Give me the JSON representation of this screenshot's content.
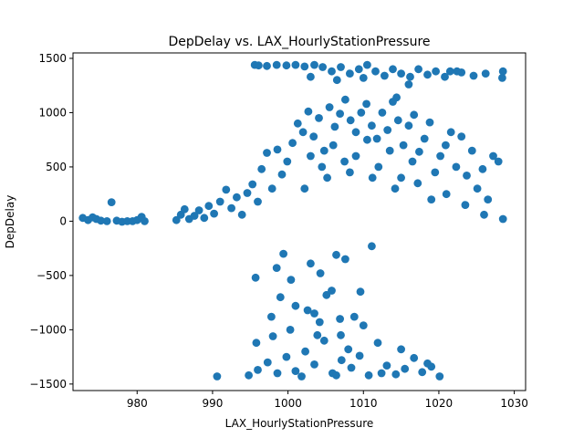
{
  "chart_data": {
    "type": "scatter",
    "title": "DepDelay vs. LAX_HourlyStationPressure",
    "xlabel": "LAX_HourlyStationPressure",
    "ylabel": "DepDelay",
    "xlim": [
      971.5,
      1031.5
    ],
    "ylim": [
      -1560,
      1550
    ],
    "xticks": [
      980,
      990,
      1000,
      1010,
      1020,
      1030
    ],
    "yticks": [
      -1500,
      -1000,
      -500,
      0,
      500,
      1000,
      1500
    ],
    "grid": false,
    "marker_color": "#1f77b4",
    "series": [
      {
        "points": [
          [
            972.8,
            30
          ],
          [
            973.5,
            10
          ],
          [
            974.1,
            35
          ],
          [
            974.6,
            20
          ],
          [
            975.2,
            5
          ],
          [
            976.0,
            0
          ],
          [
            976.6,
            175
          ],
          [
            977.3,
            5
          ],
          [
            978.0,
            -5
          ],
          [
            978.7,
            0
          ],
          [
            979.4,
            0
          ],
          [
            980.0,
            10
          ],
          [
            980.6,
            40
          ],
          [
            981.0,
            0
          ],
          [
            985.2,
            10
          ],
          [
            985.8,
            60
          ],
          [
            986.3,
            110
          ],
          [
            986.9,
            20
          ],
          [
            987.6,
            50
          ],
          [
            988.2,
            100
          ],
          [
            988.9,
            30
          ],
          [
            989.5,
            140
          ],
          [
            990.2,
            70
          ],
          [
            991.0,
            180
          ],
          [
            991.8,
            290
          ],
          [
            992.5,
            120
          ],
          [
            993.2,
            220
          ],
          [
            993.9,
            60
          ],
          [
            994.6,
            260
          ],
          [
            995.3,
            340
          ],
          [
            996.0,
            180
          ],
          [
            996.5,
            480
          ],
          [
            997.2,
            630
          ],
          [
            997.9,
            300
          ],
          [
            998.6,
            660
          ],
          [
            999.2,
            430
          ],
          [
            999.9,
            550
          ],
          [
            1000.6,
            720
          ],
          [
            1001.3,
            900
          ],
          [
            1002.0,
            820
          ],
          [
            1002.7,
            1010
          ],
          [
            1003.4,
            780
          ],
          [
            1004.1,
            950
          ],
          [
            1004.8,
            650
          ],
          [
            1005.5,
            1050
          ],
          [
            1006.2,
            870
          ],
          [
            1006.9,
            990
          ],
          [
            1007.6,
            1120
          ],
          [
            1008.3,
            930
          ],
          [
            1009.0,
            820
          ],
          [
            1009.7,
            1000
          ],
          [
            1010.4,
            1080
          ],
          [
            1011.1,
            880
          ],
          [
            1011.8,
            760
          ],
          [
            1012.5,
            1000
          ],
          [
            1013.2,
            840
          ],
          [
            1013.9,
            1100
          ],
          [
            1014.6,
            930
          ],
          [
            1015.3,
            700
          ],
          [
            1016.0,
            880
          ],
          [
            1016.7,
            980
          ],
          [
            1017.4,
            640
          ],
          [
            1018.1,
            760
          ],
          [
            1018.8,
            910
          ],
          [
            1019.5,
            450
          ],
          [
            1020.2,
            600
          ],
          [
            1020.9,
            700
          ],
          [
            1021.6,
            820
          ],
          [
            1022.3,
            500
          ],
          [
            1023.0,
            780
          ],
          [
            1023.7,
            420
          ],
          [
            1024.4,
            650
          ],
          [
            1025.1,
            300
          ],
          [
            1025.8,
            480
          ],
          [
            1026.5,
            200
          ],
          [
            1027.2,
            600
          ],
          [
            1027.9,
            550
          ],
          [
            1028.5,
            20
          ],
          [
            1003.0,
            600
          ],
          [
            1004.5,
            500
          ],
          [
            1006.0,
            700
          ],
          [
            1007.5,
            550
          ],
          [
            1009.0,
            600
          ],
          [
            1010.5,
            750
          ],
          [
            1012.0,
            500
          ],
          [
            1013.5,
            650
          ],
          [
            1015.0,
            400
          ],
          [
            1016.5,
            550
          ],
          [
            1005.2,
            400
          ],
          [
            1008.2,
            450
          ],
          [
            1011.2,
            400
          ],
          [
            1014.2,
            300
          ],
          [
            1017.2,
            350
          ],
          [
            1002.2,
            300
          ],
          [
            1019.0,
            200
          ],
          [
            1021.0,
            250
          ],
          [
            1023.5,
            150
          ],
          [
            1026.0,
            60
          ],
          [
            995.6,
            1440
          ],
          [
            996.1,
            1435
          ],
          [
            997.2,
            1430
          ],
          [
            998.5,
            1440
          ],
          [
            999.8,
            1435
          ],
          [
            1001.0,
            1440
          ],
          [
            1002.2,
            1425
          ],
          [
            1003.5,
            1440
          ],
          [
            1004.6,
            1420
          ],
          [
            1005.8,
            1380
          ],
          [
            1007.0,
            1420
          ],
          [
            1008.2,
            1360
          ],
          [
            1009.4,
            1400
          ],
          [
            1010.5,
            1440
          ],
          [
            1011.6,
            1380
          ],
          [
            1012.8,
            1340
          ],
          [
            1013.9,
            1400
          ],
          [
            1015.0,
            1360
          ],
          [
            1016.2,
            1330
          ],
          [
            1017.3,
            1400
          ],
          [
            1018.5,
            1350
          ],
          [
            1019.6,
            1380
          ],
          [
            1020.8,
            1330
          ],
          [
            1021.5,
            1380
          ],
          [
            1023.0,
            1370
          ],
          [
            1024.6,
            1340
          ],
          [
            1026.2,
            1360
          ],
          [
            1028.5,
            1380
          ],
          [
            1028.4,
            1320
          ],
          [
            1016.0,
            1260
          ],
          [
            1014.4,
            1140
          ],
          [
            1022.4,
            1380
          ],
          [
            1003.0,
            1330
          ],
          [
            1006.5,
            1300
          ],
          [
            1010.0,
            1320
          ],
          [
            999.4,
            -300
          ],
          [
            1003.0,
            -390
          ],
          [
            1006.4,
            -310
          ],
          [
            1011.1,
            -230
          ],
          [
            995.7,
            -520
          ],
          [
            1000.4,
            -540
          ],
          [
            998.5,
            -430
          ],
          [
            1004.3,
            -480
          ],
          [
            1007.6,
            -350
          ],
          [
            1005.1,
            -680
          ],
          [
            999.0,
            -700
          ],
          [
            1001.0,
            -780
          ],
          [
            1005.8,
            -640
          ],
          [
            1009.6,
            -650
          ],
          [
            997.8,
            -880
          ],
          [
            1002.6,
            -820
          ],
          [
            1006.9,
            -900
          ],
          [
            1003.5,
            -850
          ],
          [
            1008.8,
            -880
          ],
          [
            1010.0,
            -960
          ],
          [
            998.0,
            -1060
          ],
          [
            1000.3,
            -1000
          ],
          [
            1004.2,
            -930
          ],
          [
            1007.0,
            -1050
          ],
          [
            995.8,
            -1120
          ],
          [
            990.6,
            -1430
          ],
          [
            994.8,
            -1420
          ],
          [
            996.0,
            -1370
          ],
          [
            997.3,
            -1300
          ],
          [
            998.6,
            -1400
          ],
          [
            999.8,
            -1250
          ],
          [
            1001.0,
            -1380
          ],
          [
            1002.3,
            -1200
          ],
          [
            1003.5,
            -1320
          ],
          [
            1004.8,
            -1100
          ],
          [
            1005.9,
            -1400
          ],
          [
            1007.1,
            -1280
          ],
          [
            1008.4,
            -1350
          ],
          [
            1009.5,
            -1240
          ],
          [
            1010.7,
            -1420
          ],
          [
            1011.9,
            -1120
          ],
          [
            1013.1,
            -1330
          ],
          [
            1014.3,
            -1410
          ],
          [
            1015.5,
            -1360
          ],
          [
            1016.7,
            -1260
          ],
          [
            1017.8,
            -1390
          ],
          [
            1019.0,
            -1340
          ],
          [
            1020.1,
            -1430
          ],
          [
            1015.0,
            -1180
          ],
          [
            1018.5,
            -1310
          ],
          [
            1001.8,
            -1430
          ],
          [
            1006.4,
            -1420
          ],
          [
            1012.4,
            -1400
          ],
          [
            1008.0,
            -1180
          ],
          [
            1003.9,
            -1050
          ]
        ]
      }
    ]
  }
}
